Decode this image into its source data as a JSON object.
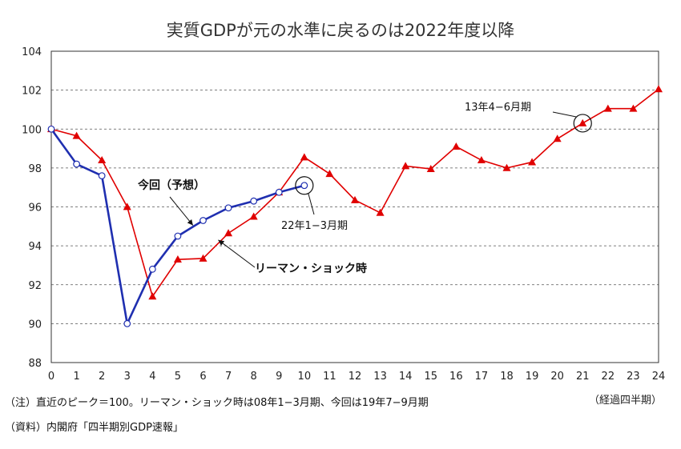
{
  "chart_data": {
    "type": "line",
    "title": "実質GDPが元の水準に戻るのは2022年度以降",
    "xlabel": "（経過四半期）",
    "ylabel": "",
    "xlim": [
      0,
      24
    ],
    "ylim": [
      88,
      104
    ],
    "x_ticks": [
      "0",
      "1",
      "2",
      "3",
      "4",
      "5",
      "6",
      "7",
      "8",
      "9",
      "10",
      "11",
      "12",
      "13",
      "14",
      "15",
      "16",
      "17",
      "18",
      "19",
      "20",
      "21",
      "22",
      "23",
      "24"
    ],
    "y_ticks": [
      "88",
      "90",
      "92",
      "94",
      "96",
      "98",
      "100",
      "102",
      "104"
    ],
    "grid": true,
    "series": [
      {
        "name": "今回（予想）",
        "color": "#1f2fb0",
        "marker": "circle",
        "x": [
          0,
          1,
          2,
          3,
          4,
          5,
          6,
          7,
          8,
          9,
          10
        ],
        "values": [
          100,
          98.2,
          97.6,
          90.0,
          92.8,
          94.5,
          95.3,
          95.95,
          96.3,
          96.75,
          97.1
        ]
      },
      {
        "name": "リーマン・ショック時",
        "color": "#e00000",
        "marker": "triangle",
        "x": [
          0,
          1,
          2,
          3,
          4,
          5,
          6,
          7,
          8,
          9,
          10,
          11,
          12,
          13,
          14,
          15,
          16,
          17,
          18,
          19,
          20,
          21,
          22,
          23,
          24
        ],
        "values": [
          100,
          99.65,
          98.4,
          96.0,
          91.4,
          93.3,
          93.35,
          94.65,
          95.5,
          96.75,
          98.55,
          97.7,
          96.35,
          95.7,
          98.1,
          97.95,
          99.1,
          98.4,
          98.0,
          98.3,
          99.5,
          100.3,
          101.05,
          101.05,
          102.05
        ]
      }
    ],
    "annotations": [
      {
        "text": "今回（予想）",
        "target_x": 5.6,
        "target_y": 95.05
      },
      {
        "text": "リーマン・ショック時",
        "target_x": 6.6,
        "target_y": 94.3
      },
      {
        "text": "22年1−3月期",
        "target_x": 10,
        "target_y": 97.1
      },
      {
        "text": "13年4−6月期",
        "target_x": 21,
        "target_y": 100.3
      }
    ]
  },
  "notes": {
    "note": "（注）直近のピーク＝100。リーマン・ショック時は08年1−3月期、今回は19年7−9月期",
    "source": "（資料）内閣府「四半期別GDP速報」"
  }
}
